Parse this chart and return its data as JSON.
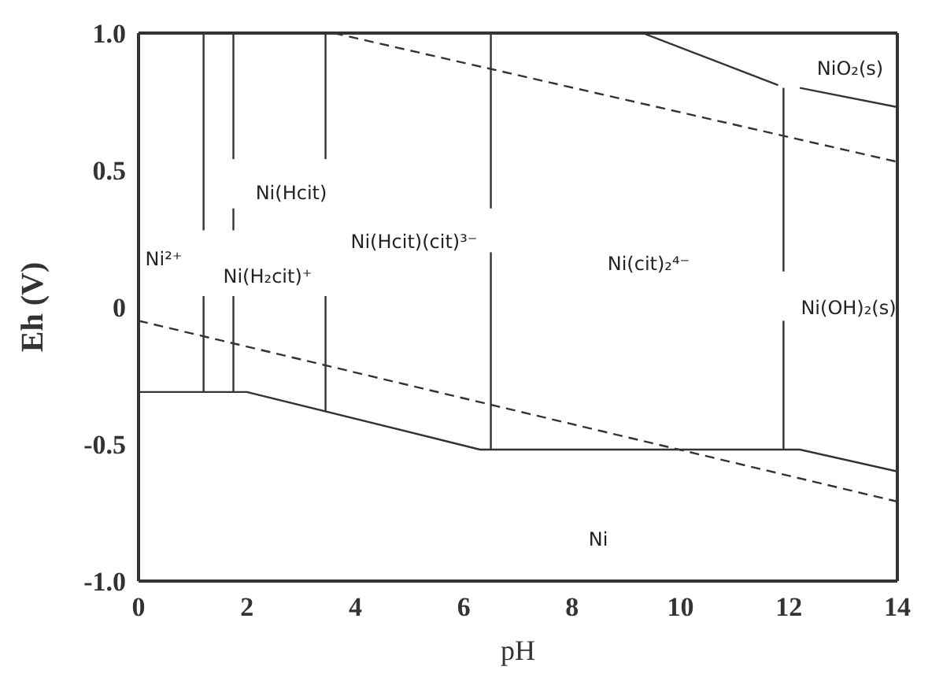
{
  "chart_data": {
    "type": "line",
    "xlabel": "pH",
    "ylabel": "Eh (V)",
    "xlim": [
      0,
      14
    ],
    "ylim": [
      -1,
      1
    ],
    "xticks": [
      0,
      2,
      4,
      6,
      8,
      10,
      12,
      14
    ],
    "yticks": [
      {
        "value": 1,
        "label": "1.0"
      },
      {
        "value": 0.5,
        "label": "0.5"
      },
      0,
      {
        "value": -0.5,
        "label": "-0.5"
      },
      {
        "value": -1,
        "label": "-1.0"
      }
    ],
    "marker": "none",
    "series": [
      {
        "color": "#333333",
        "line_style": "solid",
        "x": [
          0,
          2,
          6.3,
          12.2,
          14
        ],
        "values": [
          -0.31,
          -0.31,
          -0.52,
          -0.52,
          -0.6
        ]
      },
      {
        "color": "#333333",
        "line_style": "solid",
        "x": [
          1.2,
          1.2
        ],
        "values": [
          -0.31,
          0.04
        ]
      },
      {
        "color": "#333333",
        "line_style": "solid",
        "x": [
          1.2,
          1.2
        ],
        "values": [
          0.28,
          1.0
        ]
      },
      {
        "color": "#333333",
        "line_style": "solid",
        "x": [
          1.75,
          1.75
        ],
        "values": [
          -0.31,
          0.04
        ]
      },
      {
        "color": "#333333",
        "line_style": "solid",
        "x": [
          1.75,
          1.75
        ],
        "values": [
          0.28,
          0.36
        ]
      },
      {
        "color": "#333333",
        "line_style": "solid",
        "x": [
          1.75,
          1.75
        ],
        "values": [
          0.54,
          1.0
        ]
      },
      {
        "color": "#333333",
        "line_style": "solid",
        "x": [
          3.45,
          3.45
        ],
        "values": [
          -0.38,
          0.04
        ]
      },
      {
        "color": "#333333",
        "line_style": "solid",
        "x": [
          3.45,
          3.45
        ],
        "values": [
          0.54,
          1.0
        ]
      },
      {
        "color": "#333333",
        "line_style": "solid",
        "x": [
          6.5,
          6.5
        ],
        "values": [
          -0.52,
          0.2
        ]
      },
      {
        "color": "#333333",
        "line_style": "solid",
        "x": [
          6.5,
          6.5
        ],
        "values": [
          0.36,
          1.0
        ]
      },
      {
        "color": "#333333",
        "line_style": "solid",
        "x": [
          11.9,
          11.9
        ],
        "values": [
          -0.52,
          -0.05
        ]
      },
      {
        "color": "#333333",
        "line_style": "solid",
        "x": [
          11.9,
          11.9
        ],
        "values": [
          0.13,
          0.8
        ]
      },
      {
        "color": "#333333",
        "line_style": "solid",
        "x": [
          9.3,
          11.8
        ],
        "values": [
          1.0,
          0.81
        ]
      },
      {
        "color": "#333333",
        "line_style": "solid",
        "x": [
          12.2,
          14
        ],
        "values": [
          0.8,
          0.73
        ]
      },
      {
        "color": "#333333",
        "line_style": "dashed",
        "x": [
          0,
          14
        ],
        "values": [
          -0.05,
          -0.71
        ]
      },
      {
        "color": "#333333",
        "line_style": "dashed",
        "x": [
          3.6,
          14
        ],
        "values": [
          1.0,
          0.53
        ]
      }
    ],
    "annotations": [
      "Ni²⁺",
      "Ni(H₂cit)⁺",
      "Ni(Hcit)",
      "Ni(Hcit)(cit)³⁻",
      "Ni(cit)₂⁴⁻",
      "Ni(OH)₂(s)",
      "NiO₂(s)",
      "Ni"
    ]
  }
}
